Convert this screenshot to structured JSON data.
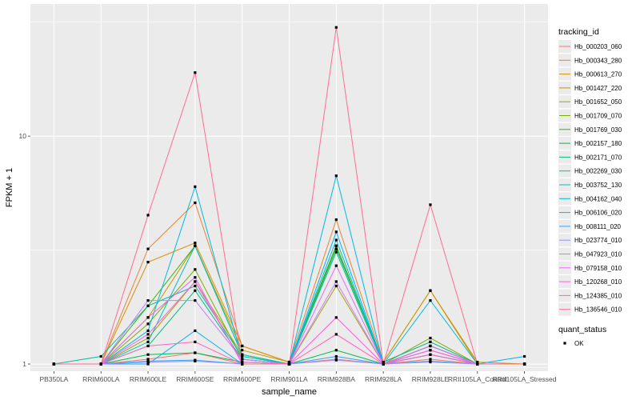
{
  "chart_data": {
    "type": "line",
    "xlabel": "sample_name",
    "ylabel": "FPKM + 1",
    "y_scale": "log10",
    "ylim": [
      0.93,
      38
    ],
    "y_ticks": [
      1,
      10
    ],
    "y_tick_labels": [
      "1",
      "10"
    ],
    "grid": true,
    "legend_position": "right",
    "categories": [
      "PB350LA",
      "RRIM600LA",
      "RRIM600LE",
      "RRIM600SE",
      "RRIM600PE",
      "RRIM901LA",
      "RRIM928BA",
      "RRIM928LA",
      "RRIM928LE",
      "RRII105LA_Control",
      "RRII105LA_Stressed"
    ],
    "legend_title": "tracking_id",
    "series": [
      {
        "name": "Hb_000203_060",
        "color": "#F8766D",
        "values": [
          1,
          1,
          1.05,
          1.12,
          1.0,
          1.0,
          1.05,
          1.0,
          1.05,
          1.0,
          1.0
        ]
      },
      {
        "name": "Hb_000343_280",
        "color": "#EA8331",
        "values": [
          1,
          1,
          3.2,
          5.1,
          1.2,
          1.02,
          4.3,
          1.02,
          1.25,
          1.0,
          1.0
        ]
      },
      {
        "name": "Hb_000613_270",
        "color": "#D89000",
        "values": [
          1,
          1,
          2.8,
          3.4,
          1.2,
          1.02,
          3.3,
          1.02,
          2.1,
          1.0,
          1.0
        ]
      },
      {
        "name": "Hb_001427_220",
        "color": "#C09B00",
        "values": [
          1,
          1,
          1.6,
          3.3,
          1.15,
          1.02,
          3.2,
          1.02,
          2.1,
          1.02,
          1.0
        ]
      },
      {
        "name": "Hb_001652_050",
        "color": "#A3A500",
        "values": [
          1,
          1,
          1.3,
          2.3,
          1.1,
          1.0,
          2.2,
          1.0,
          1.2,
          1.0,
          1.0
        ]
      },
      {
        "name": "Hb_001709_070",
        "color": "#7CAE00",
        "values": [
          1,
          1,
          1.5,
          2.6,
          1.05,
          1.0,
          3.3,
          1.0,
          1.3,
          1.0,
          1.0
        ]
      },
      {
        "name": "Hb_001769_030",
        "color": "#39B600",
        "values": [
          1,
          1,
          1.8,
          3.3,
          1.1,
          1.0,
          3.3,
          1.0,
          1.2,
          1.0,
          1.0
        ]
      },
      {
        "name": "Hb_002157_180",
        "color": "#00BB4E",
        "values": [
          1,
          1,
          1.1,
          1.12,
          1.02,
          1.0,
          1.15,
          1.0,
          1.1,
          1.0,
          1.0
        ]
      },
      {
        "name": "Hb_002171_070",
        "color": "#00BF7D",
        "values": [
          1,
          1,
          1.2,
          2.1,
          1.05,
          1.0,
          3.1,
          1.0,
          1.15,
          1.0,
          1.0
        ]
      },
      {
        "name": "Hb_002269_030",
        "color": "#00C1A3",
        "values": [
          1,
          1.08,
          1.8,
          2.2,
          1.08,
          1.0,
          3.2,
          1.02,
          1.25,
          1.0,
          1.0
        ]
      },
      {
        "name": "Hb_003752_130",
        "color": "#00BFC4",
        "values": [
          1,
          1,
          1.25,
          3.3,
          1.1,
          1.0,
          3.5,
          1.0,
          1.2,
          1.0,
          1.0
        ]
      },
      {
        "name": "Hb_004162_040",
        "color": "#00BAE0",
        "values": [
          1,
          1,
          1.4,
          6.0,
          1.05,
          1.0,
          6.7,
          1.0,
          1.9,
          1.0,
          1.0
        ]
      },
      {
        "name": "Hb_006106_020",
        "color": "#00B0F6",
        "values": [
          1,
          1,
          1.0,
          1.4,
          1.0,
          1.0,
          3.8,
          1.0,
          1.1,
          1.0,
          1.08
        ]
      },
      {
        "name": "Hb_008111_020",
        "color": "#35A2FF",
        "values": [
          1,
          1,
          1.03,
          1.04,
          1.0,
          1.0,
          1.08,
          1.0,
          1.03,
          1.0,
          1.0
        ]
      },
      {
        "name": "Hb_023774_010",
        "color": "#9590FF",
        "values": [
          1,
          1,
          1.02,
          1.03,
          1.0,
          1.0,
          1.04,
          1.0,
          1.02,
          1.0,
          1.0
        ]
      },
      {
        "name": "Hb_047923_010",
        "color": "#C77CFF",
        "values": [
          1,
          1,
          1.9,
          1.9,
          1.05,
          1.0,
          2.3,
          1.0,
          1.15,
          1.0,
          1.0
        ]
      },
      {
        "name": "Hb_079158_010",
        "color": "#E76BF3",
        "values": [
          1,
          1,
          1.6,
          2.4,
          1.0,
          1.0,
          2.7,
          1.0,
          1.2,
          1.0,
          1.0
        ]
      },
      {
        "name": "Hb_120268_010",
        "color": "#FA62DB",
        "values": [
          1,
          1,
          1.35,
          2.3,
          1.02,
          1.0,
          1.6,
          1.0,
          1.15,
          1.0,
          1.0
        ]
      },
      {
        "name": "Hb_124385_010",
        "color": "#FF62BC",
        "values": [
          1,
          1,
          1.2,
          1.25,
          1.0,
          1.0,
          1.35,
          1.0,
          1.1,
          1.0,
          1.0
        ]
      },
      {
        "name": "Hb_136546_010",
        "color": "#FF6C91",
        "values": [
          1,
          1,
          4.5,
          19.0,
          1.0,
          1.0,
          30.0,
          1.0,
          5.0,
          1.0,
          1.0
        ]
      }
    ],
    "shape_legend": {
      "title": "quant_status",
      "items": [
        {
          "label": "OK",
          "shape": "square"
        }
      ]
    },
    "panel_color": "#EBEBEB",
    "grid_color": "#FFFFFF"
  }
}
